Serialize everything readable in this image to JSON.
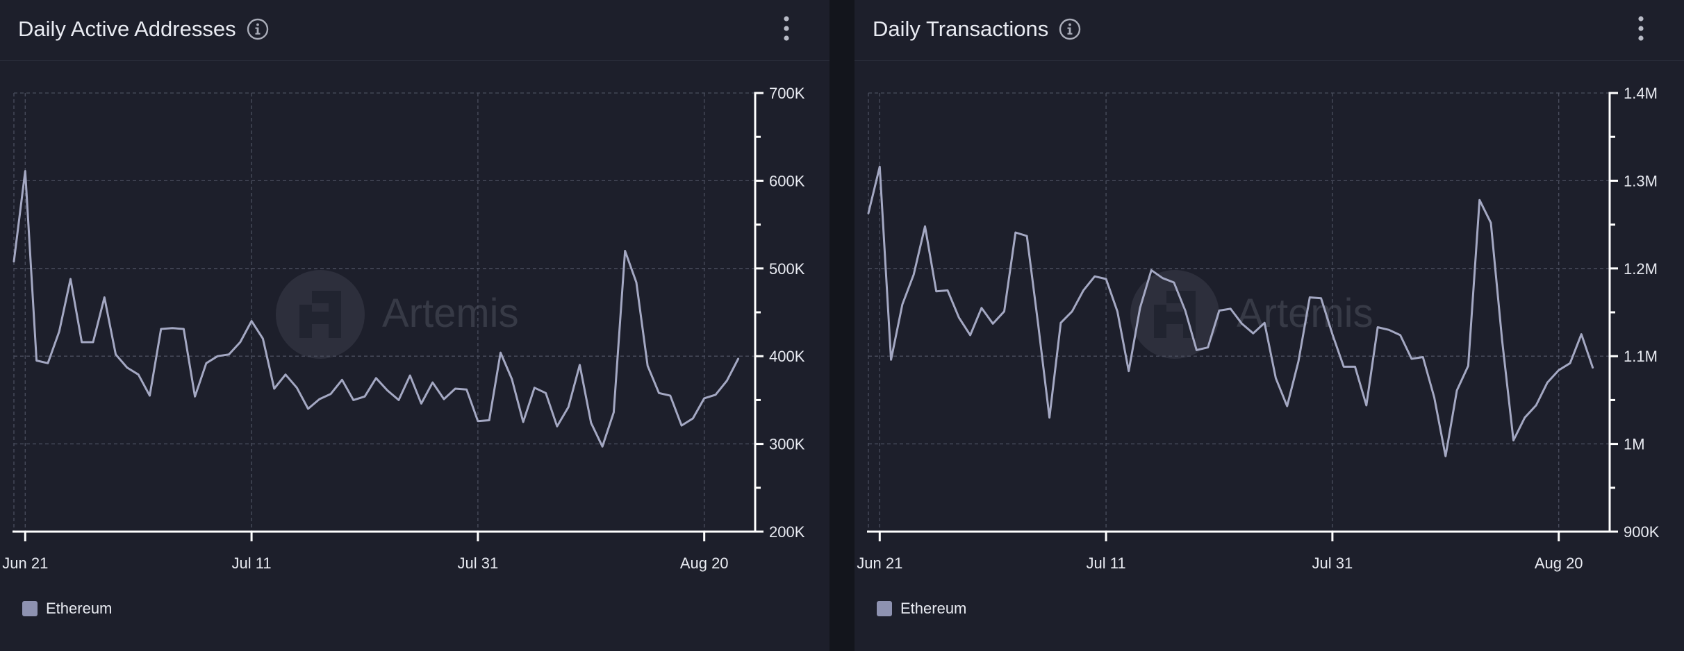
{
  "colors": {
    "line": "#a4a8c3",
    "legend_swatch": "#8e92b1",
    "watermark": "#3a3d4a"
  },
  "watermark": "Artemis",
  "chart_data": [
    {
      "type": "line",
      "title": "Daily Active Addresses",
      "xlabel": "",
      "ylabel": "",
      "x_start": "Jun 19",
      "x_interval_days": 1,
      "x_ticks": [
        "Jun 21",
        "Jul 11",
        "Jul 31",
        "Aug 20"
      ],
      "x_tick_index": [
        1,
        21,
        41,
        61
      ],
      "x_range_index": [
        0,
        65.5
      ],
      "y_ticks": [
        "200K",
        "300K",
        "400K",
        "500K",
        "600K",
        "700K"
      ],
      "y_tick_values": [
        200000,
        300000,
        400000,
        500000,
        600000,
        700000
      ],
      "ylim": [
        200000,
        700000
      ],
      "legend": "top-left",
      "series": [
        {
          "name": "Ethereum",
          "values": [
            508000,
            611000,
            395000,
            392000,
            428000,
            488000,
            416000,
            416000,
            467000,
            402000,
            387000,
            379000,
            355000,
            431000,
            432000,
            431000,
            354000,
            392000,
            400000,
            402000,
            416000,
            440000,
            420000,
            363000,
            379000,
            364000,
            340000,
            351000,
            357000,
            373000,
            350000,
            354000,
            375000,
            361000,
            350000,
            378000,
            346000,
            370000,
            351000,
            363000,
            362000,
            326000,
            327000,
            404000,
            374000,
            325000,
            364000,
            358000,
            320000,
            342000,
            390000,
            324000,
            297000,
            336000,
            520000,
            484000,
            389000,
            358000,
            355000,
            321000,
            329000,
            352000,
            356000,
            372000,
            397000
          ]
        }
      ]
    },
    {
      "type": "line",
      "title": "Daily Transactions",
      "xlabel": "",
      "ylabel": "",
      "x_start": "Jun 19",
      "x_interval_days": 1,
      "x_ticks": [
        "Jun 21",
        "Jul 11",
        "Jul 31",
        "Aug 20"
      ],
      "x_tick_index": [
        1,
        21,
        41,
        61
      ],
      "x_range_index": [
        0,
        65.5
      ],
      "y_ticks": [
        "900K",
        "1M",
        "1.1M",
        "1.2M",
        "1.3M",
        "1.4M"
      ],
      "y_tick_values": [
        900000,
        1000000,
        1100000,
        1200000,
        1300000,
        1400000
      ],
      "ylim": [
        900000,
        1400000
      ],
      "legend": "top-left",
      "series": [
        {
          "name": "Ethereum",
          "values": [
            1263000,
            1316000,
            1096000,
            1159000,
            1193000,
            1248000,
            1174000,
            1175000,
            1144000,
            1124000,
            1155000,
            1137000,
            1151000,
            1241000,
            1237000,
            1136000,
            1030000,
            1138000,
            1151000,
            1175000,
            1191000,
            1188000,
            1151000,
            1083000,
            1155000,
            1198000,
            1189000,
            1184000,
            1152000,
            1107000,
            1110000,
            1152000,
            1154000,
            1137000,
            1126000,
            1138000,
            1075000,
            1043000,
            1094000,
            1167000,
            1166000,
            1125000,
            1088000,
            1088000,
            1044000,
            1133000,
            1130000,
            1124000,
            1097000,
            1099000,
            1053000,
            986000,
            1061000,
            1089000,
            1278000,
            1252000,
            1118000,
            1004000,
            1030000,
            1044000,
            1070000,
            1084000,
            1092000,
            1125000,
            1087000
          ]
        }
      ]
    }
  ]
}
